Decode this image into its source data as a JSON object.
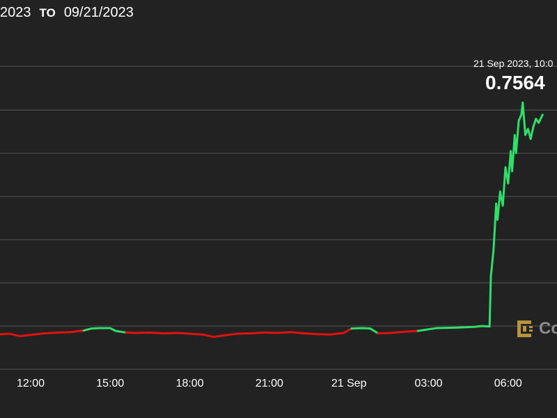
{
  "header": {
    "from_date": "2023",
    "to_label": "TO",
    "to_date": "09/21/2023"
  },
  "tooltip": {
    "date": "21 Sep 2023, 10:0",
    "value": "0.7564"
  },
  "watermark": {
    "text": "Co"
  },
  "colors": {
    "background": "#222222",
    "grid": "#555555",
    "up": "#2ee06a",
    "down": "#e3110f",
    "text": "#ffffff",
    "watermark": "#8c8c8c",
    "logo": "#b8953a"
  },
  "chart_data": {
    "type": "line",
    "x_tick_labels": [
      "12:00",
      "15:00",
      "18:00",
      "21:00",
      "21 Sep",
      "03:00",
      "06:00"
    ],
    "x_ticks_hours": [
      12,
      15,
      18,
      21,
      24,
      27,
      30
    ],
    "grid": true,
    "y_scale": {
      "anchor_value": 0.7564,
      "anchor_y": 122,
      "baseline_y": 475,
      "note": "unlabeled y axis"
    },
    "series": [
      {
        "color_rule": "green above open, red below open",
        "points": [
          [
            10.7,
            0.6946
          ],
          [
            11.2,
            0.6948
          ],
          [
            11.6,
            0.6942
          ],
          [
            12.0,
            0.6945
          ],
          [
            12.5,
            0.6949
          ],
          [
            13.0,
            0.6951
          ],
          [
            13.5,
            0.6952
          ],
          [
            14.0,
            0.6956
          ],
          [
            14.3,
            0.6961
          ],
          [
            14.6,
            0.6962
          ],
          [
            15.0,
            0.6962
          ],
          [
            15.2,
            0.6955
          ],
          [
            15.6,
            0.6951
          ],
          [
            16.0,
            0.695
          ],
          [
            16.5,
            0.6951
          ],
          [
            17.0,
            0.6949
          ],
          [
            17.5,
            0.695
          ],
          [
            18.0,
            0.6948
          ],
          [
            18.5,
            0.6946
          ],
          [
            18.9,
            0.694
          ],
          [
            19.3,
            0.6944
          ],
          [
            19.8,
            0.6948
          ],
          [
            20.3,
            0.6949
          ],
          [
            20.8,
            0.6951
          ],
          [
            21.3,
            0.695
          ],
          [
            21.8,
            0.6952
          ],
          [
            22.3,
            0.6949
          ],
          [
            22.8,
            0.6947
          ],
          [
            23.3,
            0.6946
          ],
          [
            23.8,
            0.695
          ],
          [
            24.1,
            0.6961
          ],
          [
            24.5,
            0.6962
          ],
          [
            24.8,
            0.6961
          ],
          [
            25.1,
            0.6949
          ],
          [
            25.6,
            0.695
          ],
          [
            26.1,
            0.6953
          ],
          [
            26.6,
            0.6955
          ],
          [
            26.9,
            0.6958
          ],
          [
            27.3,
            0.6962
          ],
          [
            28.0,
            0.6963
          ],
          [
            28.7,
            0.6965
          ],
          [
            29.0,
            0.6967
          ],
          [
            29.3,
            0.6966
          ],
          [
            29.35,
            0.709
          ],
          [
            29.45,
            0.7155
          ],
          [
            29.55,
            0.727
          ],
          [
            29.6,
            0.723
          ],
          [
            29.7,
            0.73
          ],
          [
            29.8,
            0.7265
          ],
          [
            29.9,
            0.736
          ],
          [
            30.0,
            0.732
          ],
          [
            30.1,
            0.74
          ],
          [
            30.15,
            0.735
          ],
          [
            30.25,
            0.744
          ],
          [
            30.3,
            0.7395
          ],
          [
            30.4,
            0.7475
          ],
          [
            30.5,
            0.749
          ],
          [
            30.55,
            0.752
          ],
          [
            30.65,
            0.744
          ],
          [
            30.75,
            0.7455
          ],
          [
            30.85,
            0.743
          ],
          [
            30.95,
            0.746
          ],
          [
            31.05,
            0.748
          ],
          [
            31.15,
            0.747
          ],
          [
            31.3,
            0.749
          ]
        ]
      }
    ],
    "annotation": {
      "date": "21 Sep 2023, 10:0",
      "value": "0.7564"
    }
  }
}
